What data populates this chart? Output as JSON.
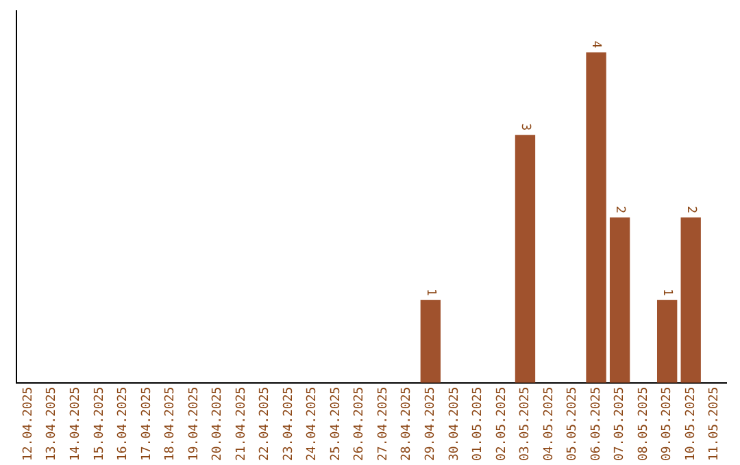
{
  "chart_data": {
    "type": "bar",
    "categories": [
      "12.04.2025",
      "13.04.2025",
      "14.04.2025",
      "15.04.2025",
      "16.04.2025",
      "17.04.2025",
      "18.04.2025",
      "19.04.2025",
      "20.04.2025",
      "21.04.2025",
      "22.04.2025",
      "23.04.2025",
      "24.04.2025",
      "25.04.2025",
      "26.04.2025",
      "27.04.2025",
      "28.04.2025",
      "29.04.2025",
      "30.04.2025",
      "01.05.2025",
      "02.05.2025",
      "03.05.2025",
      "04.05.2025",
      "05.05.2025",
      "06.05.2025",
      "07.05.2025",
      "08.05.2025",
      "09.05.2025",
      "10.05.2025",
      "11.05.2025"
    ],
    "values": [
      null,
      null,
      null,
      null,
      null,
      null,
      null,
      null,
      null,
      null,
      null,
      null,
      null,
      null,
      null,
      null,
      null,
      1,
      null,
      null,
      null,
      3,
      null,
      null,
      4,
      2,
      null,
      1,
      2,
      null
    ],
    "data_labels": true,
    "color": "#a0522d",
    "grid": false,
    "legend": false,
    "tick_labels": "x"
  }
}
